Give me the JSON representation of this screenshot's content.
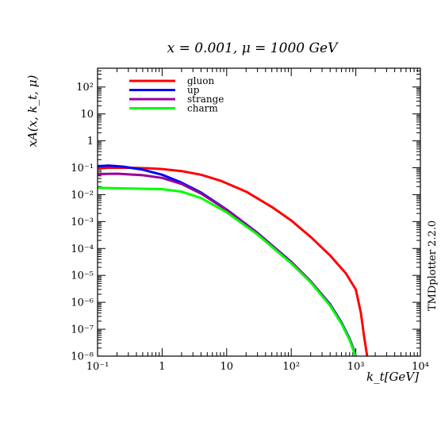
{
  "chart_data": {
    "type": "line",
    "title": "x = 0.001, μ = 1000 GeV",
    "xlabel": "k_t[GeV]",
    "ylabel": "xA(x, k_t, μ)",
    "x_scale": "log",
    "y_scale": "log",
    "xlim": [
      0.1,
      10000
    ],
    "ylim": [
      1e-08,
      500
    ],
    "x_tick_labels": [
      "10⁻¹",
      "1",
      "10",
      "10²",
      "10³",
      "10⁴"
    ],
    "y_tick_labels": [
      "10⁻⁸",
      "10⁻⁷",
      "10⁻⁶",
      "10⁻⁵",
      "10⁻⁴",
      "10⁻³",
      "10⁻²",
      "10⁻¹",
      "1",
      "10",
      "10²"
    ],
    "legend_position": "top-left",
    "side_label": "TMDplotter 2.2.0",
    "series": [
      {
        "name": "gluon",
        "color": "#ff0000",
        "x": [
          0.1,
          0.15,
          0.3,
          0.6,
          1,
          2,
          4,
          8,
          20,
          50,
          100,
          200,
          400,
          700,
          1000,
          1200,
          1350,
          1500
        ],
        "y": [
          0.095,
          0.1,
          0.1,
          0.096,
          0.09,
          0.075,
          0.055,
          0.033,
          0.013,
          0.0035,
          0.0011,
          0.00027,
          5.5e-05,
          1.2e-05,
          3e-06,
          4e-07,
          5e-08,
          1e-08
        ]
      },
      {
        "name": "up",
        "color": "#0000ff",
        "x": [
          0.1,
          0.15,
          0.25,
          0.5,
          1,
          2,
          4,
          10,
          30,
          100,
          200,
          400,
          600,
          800,
          950,
          1000
        ],
        "y": [
          0.115,
          0.12,
          0.11,
          0.085,
          0.055,
          0.028,
          0.012,
          0.0028,
          0.00038,
          3.2e-05,
          6e-06,
          8.5e-07,
          1.8e-07,
          4.5e-08,
          1.5e-08,
          1e-08
        ]
      },
      {
        "name": "strange",
        "color": "#990099",
        "x": [
          0.1,
          0.2,
          0.5,
          1,
          2,
          4,
          10,
          30,
          100,
          200,
          400,
          600,
          800,
          950,
          1000
        ],
        "y": [
          0.058,
          0.06,
          0.053,
          0.042,
          0.025,
          0.011,
          0.0027,
          0.00037,
          3.1e-05,
          6e-06,
          8.2e-07,
          1.7e-07,
          4.3e-08,
          1.4e-08,
          1e-08
        ]
      },
      {
        "name": "charm",
        "color": "#00ff00",
        "x": [
          0.1,
          0.3,
          1,
          2,
          4,
          10,
          30,
          100,
          200,
          400,
          600,
          800,
          950,
          1000
        ],
        "y": [
          0.018,
          0.017,
          0.016,
          0.013,
          0.0075,
          0.0022,
          0.00033,
          2.8e-05,
          5.5e-06,
          7.5e-07,
          1.6e-07,
          4e-08,
          1.3e-08,
          1e-08
        ]
      }
    ]
  }
}
